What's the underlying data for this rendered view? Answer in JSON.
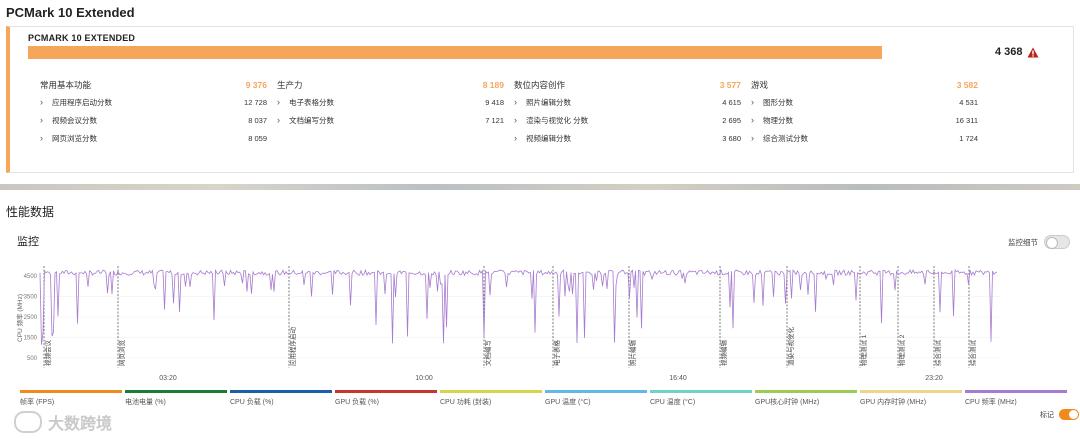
{
  "header": {
    "title": "PCMark 10 Extended"
  },
  "result": {
    "name": "PCMARK 10 EXTENDED",
    "score": "4 368",
    "accent": "#f5a65b",
    "warning_icon": "warning-triangle-icon",
    "progress": 0.89
  },
  "groups": [
    {
      "name": "常用基本功能",
      "score": "9 376",
      "items": [
        {
          "label": "应用程序启动分数",
          "value": "12 728"
        },
        {
          "label": "视频会议分数",
          "value": "8 037"
        },
        {
          "label": "网页浏览分数",
          "value": "8 059"
        }
      ]
    },
    {
      "name": "生产力",
      "score": "8 189",
      "items": [
        {
          "label": "电子表格分数",
          "value": "9 418"
        },
        {
          "label": "文档编写分数",
          "value": "7 121"
        }
      ]
    },
    {
      "name": "数位内容创作",
      "score": "3 577",
      "items": [
        {
          "label": "照片编辑分数",
          "value": "4 615"
        },
        {
          "label": "渲染与视觉化 分数",
          "value": "2 695"
        },
        {
          "label": "视频编辑分数",
          "value": "3 680"
        }
      ]
    },
    {
      "name": "游戏",
      "score": "3 582",
      "items": [
        {
          "label": "图形分数",
          "value": "4 531"
        },
        {
          "label": "物理分数",
          "value": "16 311"
        },
        {
          "label": "综合测试分数",
          "value": "1 724"
        }
      ]
    }
  ],
  "performance": {
    "section_title": "性能数据",
    "monitor_title": "监控",
    "details_toggle_label": "监控细节",
    "marker_toggle_label": "标记"
  },
  "chart_data": {
    "type": "line",
    "ylabel": "CPU 频率 (MHz)",
    "yticks": [
      500,
      1500,
      2500,
      3500,
      4500
    ],
    "ylim": [
      0,
      5000
    ],
    "xticks": [
      "03:20",
      "10:00",
      "16:40",
      "23:20"
    ],
    "series_color": "#a77bd0",
    "markers": [
      "视频会议",
      "网页浏览",
      "应用程序启动",
      "文档编写",
      "电子表格",
      "照片编辑",
      "视频编辑",
      "渲染与视觉化",
      "物理测试 1",
      "物理测试 2",
      "综合测试",
      "综合测试"
    ]
  },
  "legend": [
    {
      "label": "帧率 (FPS)",
      "color": "#f08a1c"
    },
    {
      "label": "电池电量 (%)",
      "color": "#1f7a3a"
    },
    {
      "label": "CPU 负载 (%)",
      "color": "#1b5fa8"
    },
    {
      "label": "GPU 负载 (%)",
      "color": "#c8352e"
    },
    {
      "label": "CPU 功耗 (封装)",
      "color": "#d9d34a"
    },
    {
      "label": "GPU 温度 (°C)",
      "color": "#63b7e6"
    },
    {
      "label": "CPU 温度 (°C)",
      "color": "#6fd1c9"
    },
    {
      "label": "GPU核心时钟 (MHz)",
      "color": "#9ccc55"
    },
    {
      "label": "GPU 内存时钟 (MHz)",
      "color": "#efd58c"
    },
    {
      "label": "CPU 频率 (MHz)",
      "color": "#a77bd0"
    }
  ],
  "watermark": {
    "text": "大数跨境"
  }
}
